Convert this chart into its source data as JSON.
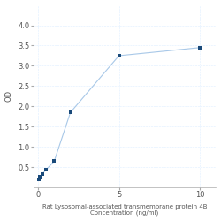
{
  "x_points": [
    0.0625,
    0.125,
    0.25,
    0.5,
    1,
    2,
    5,
    10
  ],
  "y_points": [
    0.21,
    0.26,
    0.33,
    0.44,
    0.65,
    1.85,
    3.25,
    3.45
  ],
  "line_color": "#a8c8e8",
  "marker_color": "#1a4a7a",
  "marker_style": "s",
  "marker_size": 3.5,
  "xlabel_line1": "Rat Lysosomal-associated transmembrane protein 4B",
  "xlabel_line2": "Concentration (ng/ml)",
  "ylabel": "OD",
  "ylim": [
    0,
    4.5
  ],
  "xlim": [
    -0.3,
    11
  ],
  "yticks": [
    0.5,
    1.0,
    1.5,
    2.0,
    2.5,
    3.0,
    3.5,
    4.0
  ],
  "xtick_vals": [
    0,
    5,
    10
  ],
  "xtick_labels": [
    "0",
    "5",
    "10"
  ],
  "background_color": "#ffffff",
  "grid_color": "#ddeeff",
  "xlabel_fontsize": 5.0,
  "ylabel_fontsize": 6.0,
  "tick_fontsize": 6.0
}
